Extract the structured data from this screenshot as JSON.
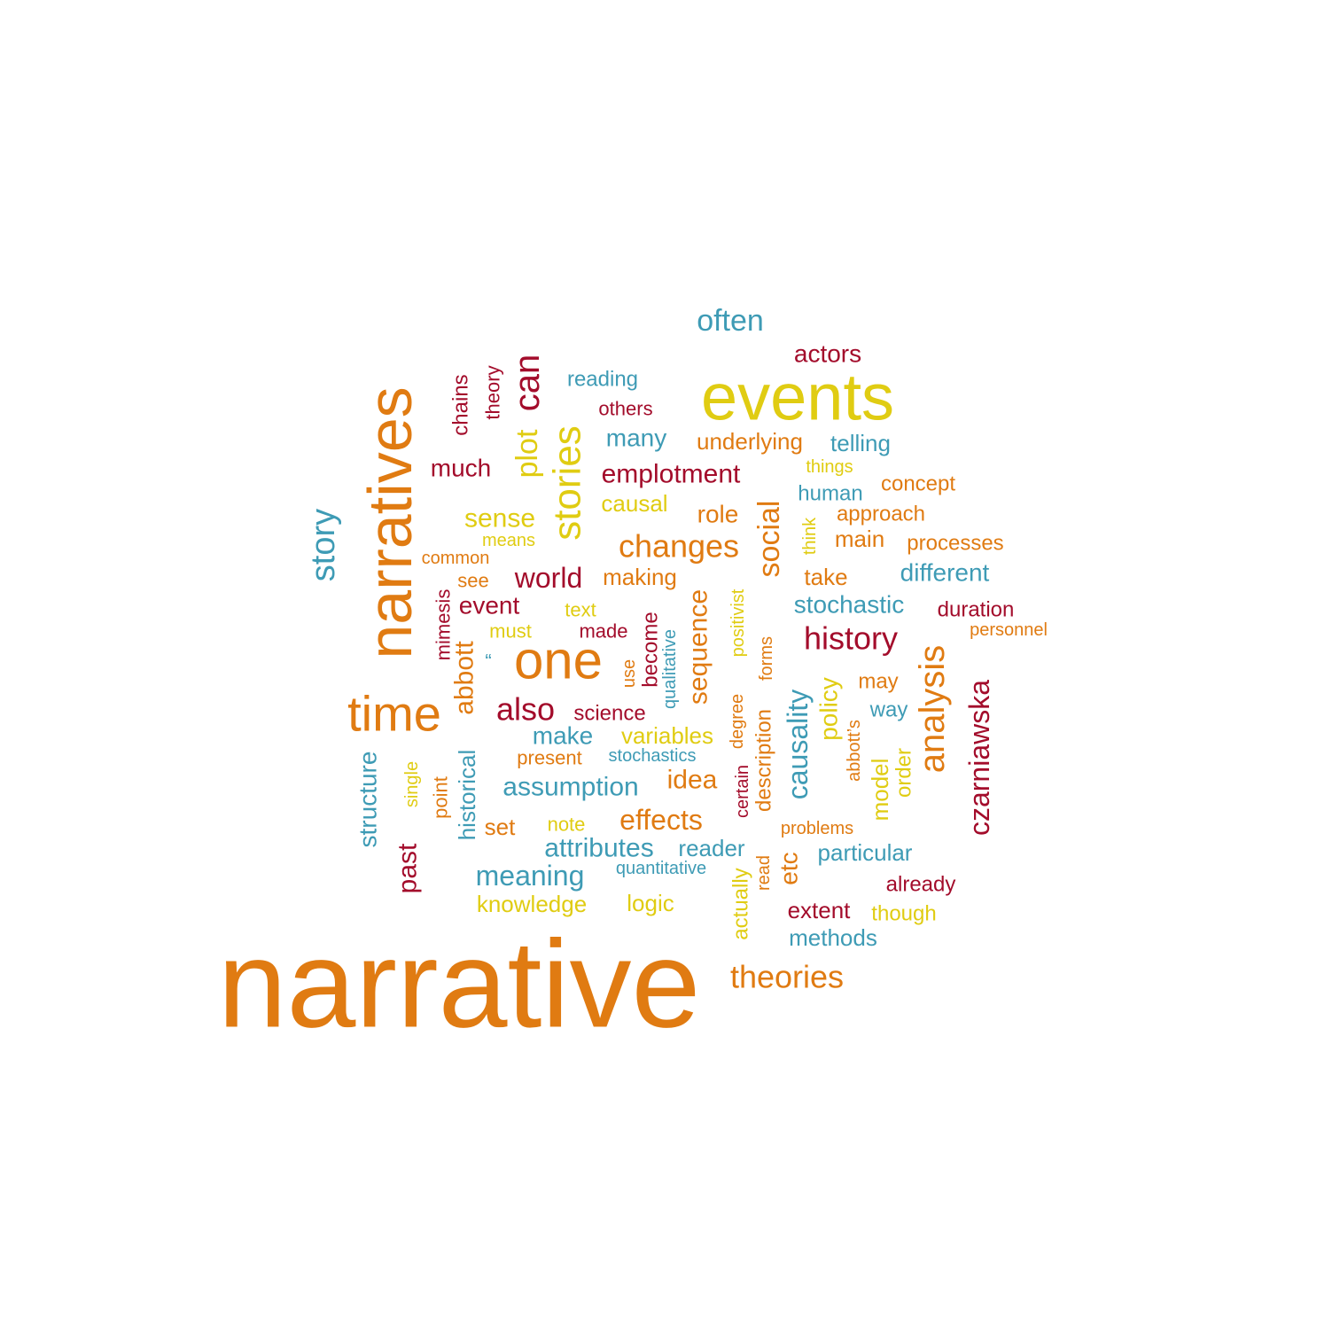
{
  "palette": {
    "orange": "#e07b12",
    "yellow": "#e0cc12",
    "red": "#a30c2b",
    "blue": "#3e9bb5"
  },
  "words": [
    {
      "text": "narrative",
      "color": "orange"
    },
    {
      "text": "events",
      "color": "yellow"
    },
    {
      "text": "narratives",
      "color": "orange"
    },
    {
      "text": "time",
      "color": "orange"
    },
    {
      "text": "one",
      "color": "orange"
    },
    {
      "text": "stories",
      "color": "yellow"
    },
    {
      "text": "story",
      "color": "blue"
    },
    {
      "text": "can",
      "color": "red"
    },
    {
      "text": "plot",
      "color": "yellow"
    },
    {
      "text": "analysis",
      "color": "orange"
    },
    {
      "text": "history",
      "color": "red"
    },
    {
      "text": "social",
      "color": "orange"
    },
    {
      "text": "czarniawska",
      "color": "red"
    },
    {
      "text": "changes",
      "color": "orange"
    },
    {
      "text": "also",
      "color": "red"
    },
    {
      "text": "often",
      "color": "blue"
    },
    {
      "text": "world",
      "color": "red"
    },
    {
      "text": "causality",
      "color": "blue"
    },
    {
      "text": "theories",
      "color": "orange"
    },
    {
      "text": "effects",
      "color": "orange"
    },
    {
      "text": "assumption",
      "color": "blue"
    },
    {
      "text": "attributes",
      "color": "blue"
    },
    {
      "text": "meaning",
      "color": "blue"
    },
    {
      "text": "emplotment",
      "color": "red"
    },
    {
      "text": "sequence",
      "color": "orange"
    },
    {
      "text": "past",
      "color": "red"
    },
    {
      "text": "abbott",
      "color": "orange"
    },
    {
      "text": "stochastic",
      "color": "blue"
    },
    {
      "text": "idea",
      "color": "orange"
    },
    {
      "text": "many",
      "color": "blue"
    },
    {
      "text": "sense",
      "color": "yellow"
    },
    {
      "text": "much",
      "color": "red"
    },
    {
      "text": "actors",
      "color": "red"
    },
    {
      "text": "underlying",
      "color": "orange"
    },
    {
      "text": "telling",
      "color": "blue"
    },
    {
      "text": "different",
      "color": "blue"
    },
    {
      "text": "role",
      "color": "orange"
    },
    {
      "text": "make",
      "color": "blue"
    },
    {
      "text": "event",
      "color": "red"
    },
    {
      "text": "structure",
      "color": "blue"
    },
    {
      "text": "etc",
      "color": "orange"
    },
    {
      "text": "policy",
      "color": "yellow"
    },
    {
      "text": "methods",
      "color": "blue"
    },
    {
      "text": "particular",
      "color": "blue"
    },
    {
      "text": "making",
      "color": "orange"
    },
    {
      "text": "variables",
      "color": "yellow"
    },
    {
      "text": "causal",
      "color": "yellow"
    },
    {
      "text": "knowledge",
      "color": "yellow"
    },
    {
      "text": "logic",
      "color": "yellow"
    },
    {
      "text": "take",
      "color": "orange"
    },
    {
      "text": "main",
      "color": "orange"
    },
    {
      "text": "extent",
      "color": "red"
    },
    {
      "text": "human",
      "color": "blue"
    },
    {
      "text": "reading",
      "color": "blue"
    },
    {
      "text": "historical",
      "color": "blue"
    },
    {
      "text": "reader",
      "color": "blue"
    },
    {
      "text": "description",
      "color": "orange"
    },
    {
      "text": "set",
      "color": "orange"
    },
    {
      "text": "model",
      "color": "yellow"
    },
    {
      "text": "order",
      "color": "yellow"
    },
    {
      "text": "science",
      "color": "red"
    },
    {
      "text": "become",
      "color": "red"
    },
    {
      "text": "chains",
      "color": "red"
    },
    {
      "text": "concept",
      "color": "orange"
    },
    {
      "text": "approach",
      "color": "orange"
    },
    {
      "text": "processes",
      "color": "orange"
    },
    {
      "text": "duration",
      "color": "red"
    },
    {
      "text": "way",
      "color": "blue"
    },
    {
      "text": "already",
      "color": "red"
    },
    {
      "text": "though",
      "color": "yellow"
    },
    {
      "text": "actually",
      "color": "yellow"
    },
    {
      "text": "may",
      "color": "orange"
    },
    {
      "text": "others",
      "color": "red"
    },
    {
      "text": "theory",
      "color": "red"
    },
    {
      "text": "mimesis",
      "color": "red"
    },
    {
      "text": "made",
      "color": "red"
    },
    {
      "text": "must",
      "color": "yellow"
    },
    {
      "text": "text",
      "color": "yellow"
    },
    {
      "text": "see",
      "color": "orange"
    },
    {
      "text": "common",
      "color": "orange"
    },
    {
      "text": "means",
      "color": "yellow"
    },
    {
      "text": "present",
      "color": "orange"
    },
    {
      "text": "stochastics",
      "color": "blue"
    },
    {
      "text": "note",
      "color": "yellow"
    },
    {
      "text": "quantitative",
      "color": "blue"
    },
    {
      "text": "point",
      "color": "orange"
    },
    {
      "text": "single",
      "color": "yellow"
    },
    {
      "text": "positivist",
      "color": "yellow"
    },
    {
      "text": "degree",
      "color": "orange"
    },
    {
      "text": "certain",
      "color": "red"
    },
    {
      "text": "forms",
      "color": "orange"
    },
    {
      "text": "read",
      "color": "orange"
    },
    {
      "text": "qualitative",
      "color": "blue"
    },
    {
      "text": "use",
      "color": "orange"
    },
    {
      "text": "things",
      "color": "yellow"
    },
    {
      "text": "think",
      "color": "yellow"
    },
    {
      "text": "abbott’s",
      "color": "orange"
    },
    {
      "text": "personnel",
      "color": "orange"
    },
    {
      "text": "problems",
      "color": "orange"
    },
    {
      "text": "“",
      "color": "blue"
    }
  ]
}
